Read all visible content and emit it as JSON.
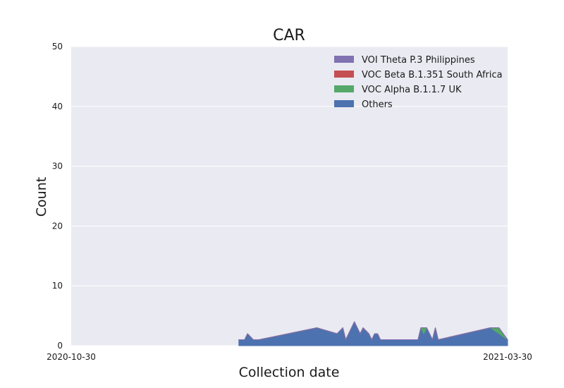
{
  "chart_data": {
    "type": "area",
    "stacked": true,
    "title": "CAR",
    "xlabel": "Collection date",
    "ylabel": "Count",
    "ylim": [
      0,
      50
    ],
    "yticks": [
      0,
      10,
      20,
      30,
      40,
      50
    ],
    "xlim": [
      "2020-10-30",
      "2021-03-30"
    ],
    "xtick_labels": [
      "2020-10-30",
      "2021-03-30"
    ],
    "grid": true,
    "legend_position": "top-right",
    "x": [
      "2020-12-27",
      "2020-12-29",
      "2020-12-30",
      "2021-01-01",
      "2021-01-03",
      "2021-01-23",
      "2021-01-30",
      "2021-02-01",
      "2021-02-02",
      "2021-02-05",
      "2021-02-07",
      "2021-02-08",
      "2021-02-10",
      "2021-02-11",
      "2021-02-12",
      "2021-02-13",
      "2021-02-14",
      "2021-02-16",
      "2021-02-20",
      "2021-02-27",
      "2021-02-28",
      "2021-03-01",
      "2021-03-02",
      "2021-03-04",
      "2021-03-05",
      "2021-03-06",
      "2021-03-24",
      "2021-03-27",
      "2021-03-30"
    ],
    "series": [
      {
        "name": "Others",
        "color": "#4c72b0",
        "values": [
          1,
          1,
          2,
          1,
          1,
          3,
          2,
          3,
          1,
          4,
          2,
          3,
          2,
          1,
          2,
          2,
          1,
          1,
          1,
          1,
          3,
          2,
          3,
          1,
          3,
          1,
          3,
          2,
          1
        ]
      },
      {
        "name": "VOC Alpha B.1.1.7 UK",
        "color": "#55a868",
        "values": [
          0,
          0,
          0,
          0,
          0,
          0,
          0,
          0,
          0,
          0,
          0,
          0,
          0,
          0,
          0,
          0,
          0,
          0,
          0,
          0,
          0,
          1,
          0,
          0,
          0,
          0,
          0,
          1,
          0
        ]
      },
      {
        "name": "VOC Beta B.1.351 South Africa",
        "color": "#c44e52",
        "values": [
          0,
          0,
          0,
          0,
          0,
          0,
          0,
          0,
          0,
          0,
          0,
          0,
          0,
          0,
          0,
          0,
          0,
          0,
          0,
          0,
          0,
          0,
          0,
          0,
          0,
          0,
          0,
          0,
          0
        ]
      },
      {
        "name": "VOI Theta P.3 Philippines",
        "color": "#8172b2",
        "values": [
          0,
          0,
          0,
          0,
          0,
          0,
          0,
          0,
          0,
          0,
          0,
          0,
          0,
          0,
          0,
          0,
          0,
          0,
          0,
          0,
          0,
          0,
          0,
          0,
          0,
          0,
          0,
          0,
          0
        ]
      }
    ]
  }
}
